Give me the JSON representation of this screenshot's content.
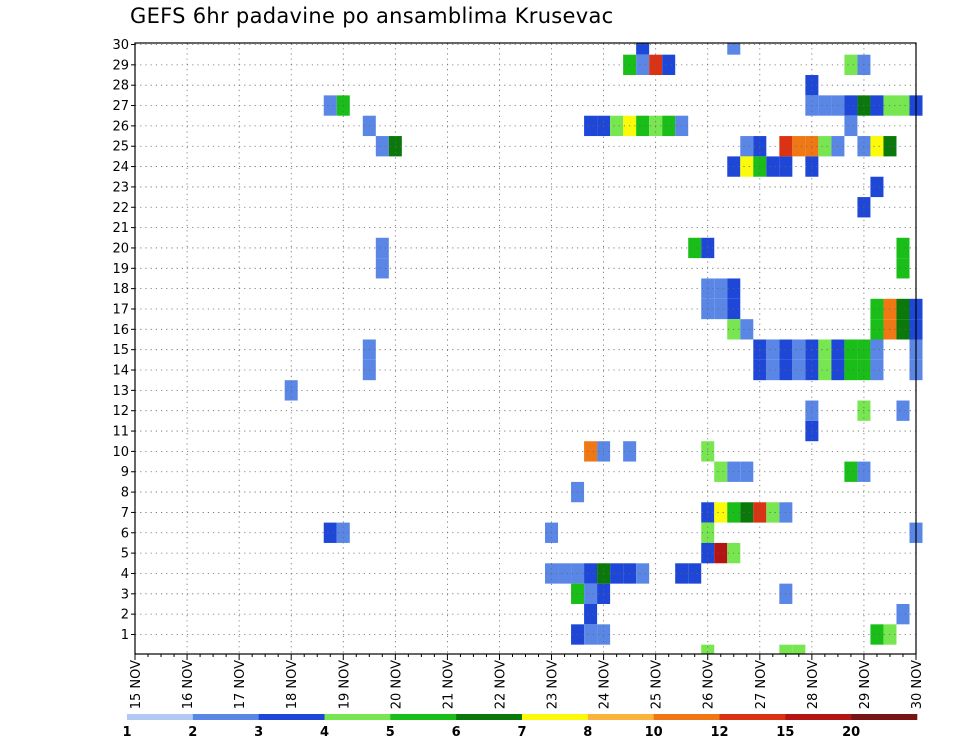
{
  "chart_data": {
    "type": "heatmap",
    "title": "GEFS 6hr padavine po ansamblima Krusevac",
    "y_ticks": [
      "1",
      "2",
      "3",
      "4",
      "5",
      "6",
      "7",
      "8",
      "9",
      "10",
      "11",
      "12",
      "13",
      "14",
      "15",
      "16",
      "17",
      "18",
      "19",
      "20",
      "21",
      "22",
      "23",
      "24",
      "25",
      "26",
      "27",
      "28",
      "29",
      "30"
    ],
    "ylim": [
      1,
      30
    ],
    "x_ticks": [
      "15 NOV",
      "16 NOV",
      "17 NOV",
      "18 NOV",
      "19 NOV",
      "20 NOV",
      "21 NOV",
      "22 NOV",
      "23 NOV",
      "24 NOV",
      "25 NOV",
      "26 NOV",
      "27 NOV",
      "28 NOV",
      "29 NOV",
      "30 NOV"
    ],
    "grid": true,
    "time_step_hours": 6,
    "legend": {
      "placement": "bottom",
      "labels": [
        "1",
        "2",
        "3",
        "4",
        "5",
        "6",
        "7",
        "8",
        "10",
        "12",
        "15",
        "20"
      ],
      "colors": [
        "#b4c8f5",
        "#5a87e6",
        "#1e46d7",
        "#78e650",
        "#19be19",
        "#0a780a",
        "#fafa0a",
        "#fab43c",
        "#f07814",
        "#dc3214",
        "#b41414",
        "#781414"
      ]
    },
    "cells": [
      [
        "24 NOV 18Z",
        30,
        2
      ],
      [
        "26 NOV 12Z",
        30,
        1
      ],
      [
        "24 NOV 12Z",
        29,
        4
      ],
      [
        "24 NOV 18Z",
        29,
        1
      ],
      [
        "25 NOV 00Z",
        29,
        9
      ],
      [
        "25 NOV 06Z",
        29,
        2
      ],
      [
        "28 NOV 18Z",
        29,
        3
      ],
      [
        "29 NOV 00Z",
        29,
        1
      ],
      [
        "28 NOV 00Z",
        28,
        2
      ],
      [
        "18 NOV 18Z",
        27,
        1
      ],
      [
        "19 NOV 00Z",
        27,
        4
      ],
      [
        "28 NOV 00Z",
        27,
        1
      ],
      [
        "28 NOV 06Z",
        27,
        1
      ],
      [
        "28 NOV 12Z",
        27,
        1
      ],
      [
        "28 NOV 18Z",
        27,
        2
      ],
      [
        "29 NOV 00Z",
        27,
        5
      ],
      [
        "29 NOV 06Z",
        27,
        2
      ],
      [
        "29 NOV 12Z",
        27,
        3
      ],
      [
        "29 NOV 18Z",
        27,
        3
      ],
      [
        "30 NOV 00Z",
        27,
        2
      ],
      [
        "19 NOV 12Z",
        26,
        1
      ],
      [
        "23 NOV 18Z",
        26,
        2
      ],
      [
        "24 NOV 00Z",
        26,
        2
      ],
      [
        "24 NOV 06Z",
        26,
        3
      ],
      [
        "24 NOV 12Z",
        26,
        6
      ],
      [
        "24 NOV 18Z",
        26,
        4
      ],
      [
        "25 NOV 00Z",
        26,
        3
      ],
      [
        "25 NOV 06Z",
        26,
        4
      ],
      [
        "25 NOV 12Z",
        26,
        1
      ],
      [
        "28 NOV 18Z",
        26,
        1
      ],
      [
        "19 NOV 18Z",
        25,
        1
      ],
      [
        "20 NOV 00Z",
        25,
        5
      ],
      [
        "26 NOV 18Z",
        25,
        1
      ],
      [
        "27 NOV 00Z",
        25,
        2
      ],
      [
        "27 NOV 12Z",
        25,
        9
      ],
      [
        "27 NOV 18Z",
        25,
        8
      ],
      [
        "28 NOV 00Z",
        25,
        8
      ],
      [
        "28 NOV 06Z",
        25,
        3
      ],
      [
        "28 NOV 12Z",
        25,
        1
      ],
      [
        "29 NOV 00Z",
        25,
        1
      ],
      [
        "29 NOV 06Z",
        25,
        6
      ],
      [
        "29 NOV 12Z",
        25,
        5
      ],
      [
        "26 NOV 12Z",
        24,
        2
      ],
      [
        "26 NOV 18Z",
        24,
        6
      ],
      [
        "27 NOV 00Z",
        24,
        4
      ],
      [
        "27 NOV 06Z",
        24,
        2
      ],
      [
        "27 NOV 12Z",
        24,
        2
      ],
      [
        "28 NOV 00Z",
        24,
        2
      ],
      [
        "29 NOV 06Z",
        23,
        2
      ],
      [
        "29 NOV 00Z",
        22,
        2
      ],
      [
        "25 NOV 18Z",
        20,
        4
      ],
      [
        "26 NOV 00Z",
        20,
        2
      ],
      [
        "19 NOV 18Z",
        20,
        1
      ],
      [
        "29 NOV 18Z",
        20,
        4
      ],
      [
        "19 NOV 18Z",
        19,
        1
      ],
      [
        "29 NOV 18Z",
        19,
        4
      ],
      [
        "26 NOV 00Z",
        18,
        1
      ],
      [
        "26 NOV 06Z",
        18,
        1
      ],
      [
        "26 NOV 12Z",
        18,
        2
      ],
      [
        "26 NOV 00Z",
        17,
        1
      ],
      [
        "26 NOV 06Z",
        17,
        1
      ],
      [
        "26 NOV 12Z",
        17,
        2
      ],
      [
        "29 NOV 06Z",
        17,
        4
      ],
      [
        "29 NOV 12Z",
        17,
        8
      ],
      [
        "29 NOV 18Z",
        17,
        5
      ],
      [
        "30 NOV 00Z",
        17,
        2
      ],
      [
        "26 NOV 12Z",
        16,
        3
      ],
      [
        "26 NOV 18Z",
        16,
        1
      ],
      [
        "29 NOV 06Z",
        16,
        4
      ],
      [
        "29 NOV 12Z",
        16,
        8
      ],
      [
        "29 NOV 18Z",
        16,
        5
      ],
      [
        "30 NOV 00Z",
        16,
        2
      ],
      [
        "19 NOV 12Z",
        15,
        1
      ],
      [
        "27 NOV 00Z",
        15,
        2
      ],
      [
        "27 NOV 06Z",
        15,
        1
      ],
      [
        "27 NOV 12Z",
        15,
        2
      ],
      [
        "27 NOV 18Z",
        15,
        1
      ],
      [
        "28 NOV 00Z",
        15,
        2
      ],
      [
        "28 NOV 06Z",
        15,
        3
      ],
      [
        "28 NOV 12Z",
        15,
        2
      ],
      [
        "28 NOV 18Z",
        15,
        4
      ],
      [
        "29 NOV 00Z",
        15,
        4
      ],
      [
        "29 NOV 06Z",
        15,
        1
      ],
      [
        "30 NOV 00Z",
        15,
        1
      ],
      [
        "19 NOV 12Z",
        14,
        1
      ],
      [
        "27 NOV 00Z",
        14,
        2
      ],
      [
        "27 NOV 06Z",
        14,
        1
      ],
      [
        "27 NOV 12Z",
        14,
        2
      ],
      [
        "27 NOV 18Z",
        14,
        1
      ],
      [
        "28 NOV 00Z",
        14,
        2
      ],
      [
        "28 NOV 06Z",
        14,
        3
      ],
      [
        "28 NOV 12Z",
        14,
        2
      ],
      [
        "28 NOV 18Z",
        14,
        4
      ],
      [
        "29 NOV 00Z",
        14,
        4
      ],
      [
        "29 NOV 06Z",
        14,
        1
      ],
      [
        "30 NOV 00Z",
        14,
        1
      ],
      [
        "18 NOV 00Z",
        13,
        1
      ],
      [
        "28 NOV 00Z",
        12,
        1
      ],
      [
        "29 NOV 00Z",
        12,
        3
      ],
      [
        "29 NOV 18Z",
        12,
        1
      ],
      [
        "28 NOV 00Z",
        11,
        2
      ],
      [
        "23 NOV 18Z",
        10,
        8
      ],
      [
        "24 NOV 00Z",
        10,
        1
      ],
      [
        "24 NOV 12Z",
        10,
        1
      ],
      [
        "26 NOV 00Z",
        10,
        3
      ],
      [
        "26 NOV 06Z",
        9,
        3
      ],
      [
        "26 NOV 12Z",
        9,
        1
      ],
      [
        "26 NOV 18Z",
        9,
        1
      ],
      [
        "28 NOV 18Z",
        9,
        4
      ],
      [
        "29 NOV 00Z",
        9,
        1
      ],
      [
        "23 NOV 12Z",
        8,
        1
      ],
      [
        "26 NOV 00Z",
        7,
        2
      ],
      [
        "26 NOV 06Z",
        7,
        6
      ],
      [
        "26 NOV 12Z",
        7,
        4
      ],
      [
        "26 NOV 18Z",
        7,
        5
      ],
      [
        "27 NOV 00Z",
        7,
        9
      ],
      [
        "27 NOV 06Z",
        7,
        3
      ],
      [
        "27 NOV 12Z",
        7,
        1
      ],
      [
        "18 NOV 18Z",
        6,
        2
      ],
      [
        "19 NOV 00Z",
        6,
        1
      ],
      [
        "23 NOV 00Z",
        6,
        1
      ],
      [
        "26 NOV 00Z",
        6,
        3
      ],
      [
        "30 NOV 00Z",
        6,
        1
      ],
      [
        "26 NOV 00Z",
        5,
        2
      ],
      [
        "26 NOV 06Z",
        5,
        10
      ],
      [
        "26 NOV 12Z",
        5,
        3
      ],
      [
        "23 NOV 00Z",
        4,
        1
      ],
      [
        "23 NOV 06Z",
        4,
        1
      ],
      [
        "23 NOV 12Z",
        4,
        1
      ],
      [
        "23 NOV 18Z",
        4,
        2
      ],
      [
        "24 NOV 00Z",
        4,
        5
      ],
      [
        "24 NOV 06Z",
        4,
        2
      ],
      [
        "24 NOV 12Z",
        4,
        2
      ],
      [
        "24 NOV 18Z",
        4,
        1
      ],
      [
        "25 NOV 12Z",
        4,
        2
      ],
      [
        "25 NOV 18Z",
        4,
        2
      ],
      [
        "23 NOV 12Z",
        3,
        4
      ],
      [
        "23 NOV 18Z",
        3,
        1
      ],
      [
        "24 NOV 00Z",
        3,
        2
      ],
      [
        "27 NOV 12Z",
        3,
        1
      ],
      [
        "23 NOV 18Z",
        2,
        2
      ],
      [
        "29 NOV 18Z",
        2,
        1
      ],
      [
        "23 NOV 12Z",
        1,
        2
      ],
      [
        "23 NOV 18Z",
        1,
        1
      ],
      [
        "24 NOV 00Z",
        1,
        1
      ],
      [
        "29 NOV 06Z",
        1,
        4
      ],
      [
        "29 NOV 12Z",
        1,
        3
      ],
      [
        "26 NOV 00Z",
        0,
        3
      ],
      [
        "27 NOV 12Z",
        0,
        3
      ],
      [
        "27 NOV 18Z",
        0,
        3
      ]
    ]
  }
}
